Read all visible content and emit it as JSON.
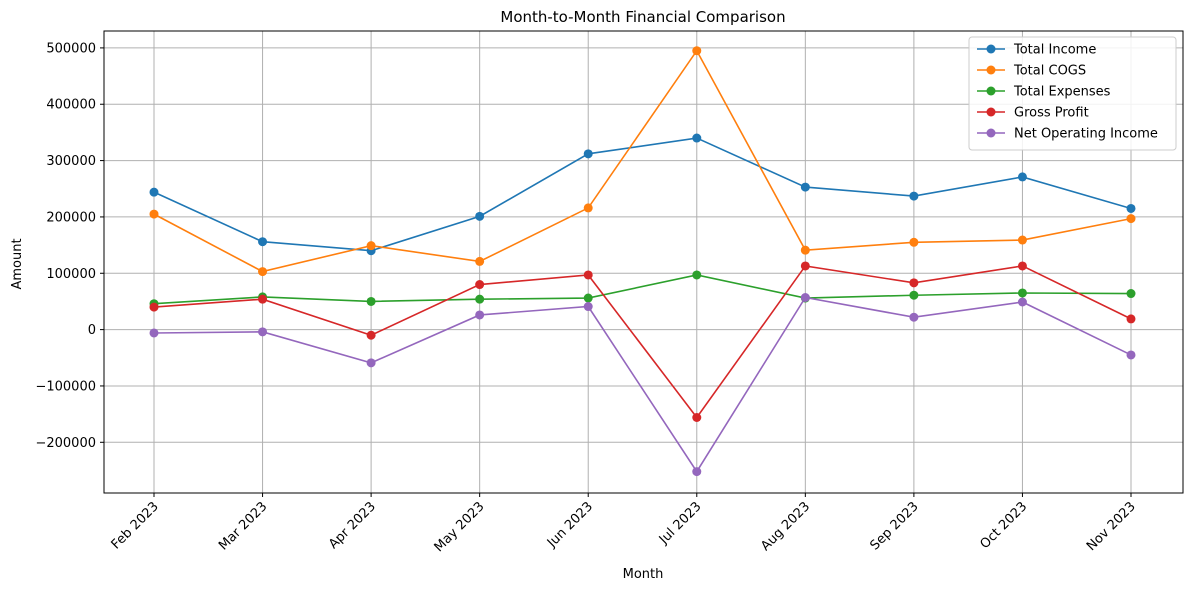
{
  "chart_data": {
    "type": "line",
    "title": "Month-to-Month Financial Comparison",
    "xlabel": "Month",
    "ylabel": "Amount",
    "categories": [
      "Feb 2023",
      "Mar 2023",
      "Apr 2023",
      "May 2023",
      "Jun 2023",
      "Jul 2023",
      "Aug 2023",
      "Sep 2023",
      "Oct 2023",
      "Nov 2023"
    ],
    "ylim": [
      -290000,
      530000
    ],
    "yticks": [
      -200000,
      -100000,
      0,
      100000,
      200000,
      300000,
      400000,
      500000
    ],
    "ytick_labels": [
      "−200000",
      "−100000",
      "0",
      "100000",
      "200000",
      "300000",
      "400000",
      "500000"
    ],
    "grid": true,
    "legend_position": "top-right",
    "series": [
      {
        "name": "Total Income",
        "color": "#1f77b4",
        "values": [
          244000,
          156000,
          140000,
          201000,
          312000,
          340000,
          253000,
          237000,
          271000,
          215000
        ]
      },
      {
        "name": "Total COGS",
        "color": "#ff7f0e",
        "values": [
          205000,
          103000,
          149000,
          121000,
          216000,
          495000,
          141000,
          155000,
          159000,
          197000
        ]
      },
      {
        "name": "Total Expenses",
        "color": "#2ca02c",
        "values": [
          46000,
          58000,
          50000,
          54000,
          56000,
          97000,
          56000,
          61000,
          65000,
          64000
        ]
      },
      {
        "name": "Gross Profit",
        "color": "#d62728",
        "values": [
          40000,
          54000,
          -10000,
          80000,
          97000,
          -156000,
          113000,
          83000,
          113000,
          19000
        ]
      },
      {
        "name": "Net Operating Income",
        "color": "#9467bd",
        "values": [
          -6000,
          -4000,
          -59000,
          26000,
          41000,
          -252000,
          57000,
          22000,
          49000,
          -45000
        ]
      }
    ]
  }
}
